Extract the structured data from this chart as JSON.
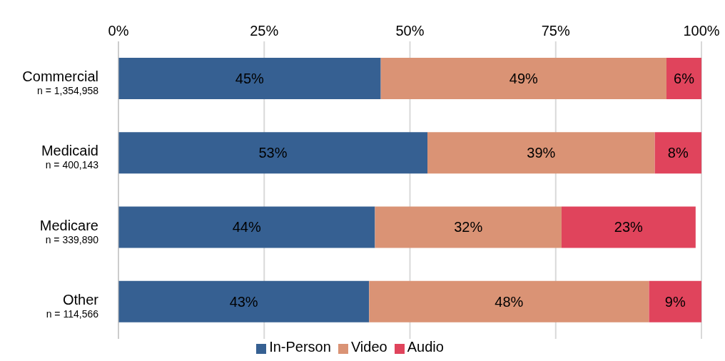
{
  "chart_data": {
    "type": "bar",
    "orientation": "horizontal",
    "stacked": true,
    "categories": [
      "Commercial\nn = 1,354,958",
      "Medicaid\nn = 400,143",
      "Medicare\nn = 339,890",
      "Other\nn = 114,566"
    ],
    "series": [
      {
        "name": "In-Person",
        "color": "#366092",
        "values": [
          45,
          53,
          44,
          43
        ],
        "value_labels": [
          "45%",
          "53%",
          "44%",
          "43%"
        ]
      },
      {
        "name": "Video",
        "color": "#da9375",
        "values": [
          49,
          39,
          32,
          48
        ],
        "value_labels": [
          "49%",
          "39%",
          "32%",
          "48%"
        ]
      },
      {
        "name": "Audio",
        "color": "#e0445c",
        "values": [
          6,
          8,
          23,
          9
        ],
        "value_labels": [
          "6%",
          "8%",
          "23%",
          "9%"
        ]
      }
    ],
    "xlim": [
      0,
      100
    ],
    "xticks": [
      {
        "value": 0,
        "label": "0%"
      },
      {
        "value": 25,
        "label": "25%"
      },
      {
        "value": 50,
        "label": "50%"
      },
      {
        "value": 75,
        "label": "75%"
      },
      {
        "value": 100,
        "label": "100%"
      }
    ],
    "grid": "x",
    "legend": "bottom"
  }
}
